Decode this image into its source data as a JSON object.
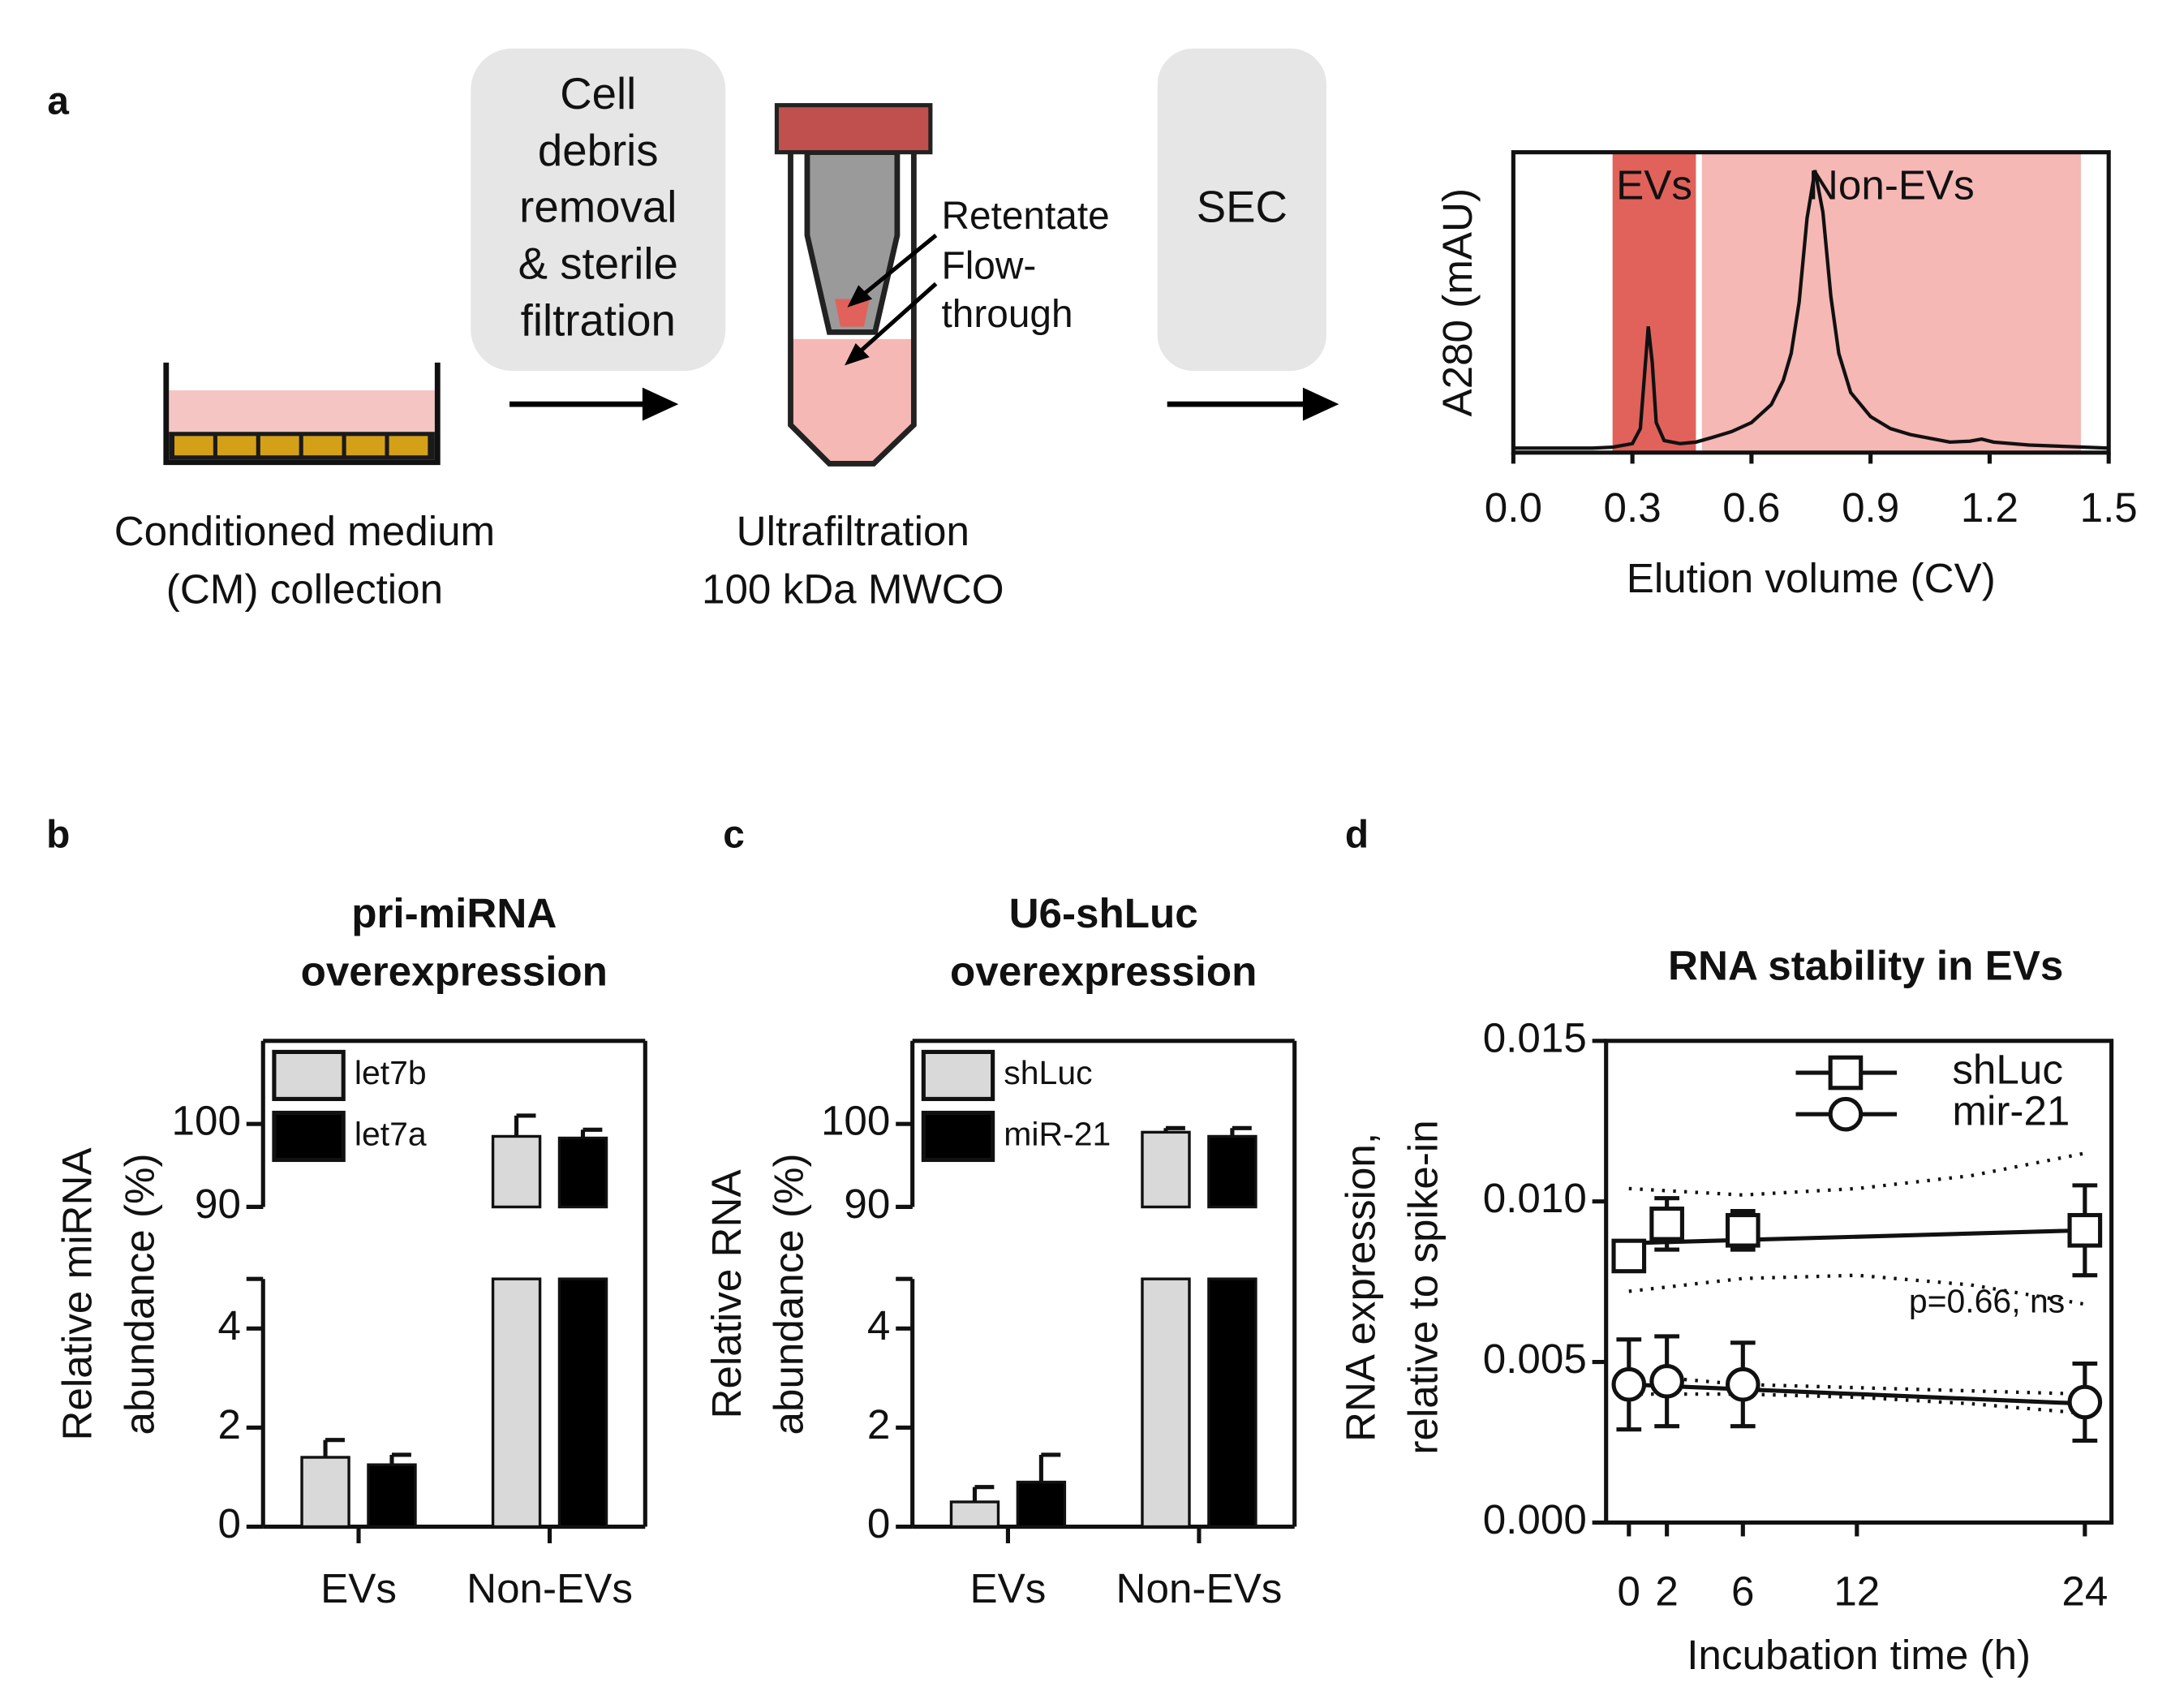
{
  "panel_labels": [
    "a",
    "b",
    "c",
    "d"
  ],
  "schematic": {
    "step1_box": [
      "Cell",
      "debris",
      "removal",
      "& sterile",
      "filtration"
    ],
    "step2_box": "SEC",
    "caption_cm": [
      "Conditioned medium",
      "(CM) collection"
    ],
    "caption_uf": [
      "Ultrafiltration",
      "100 kDa MWCO"
    ],
    "retentate": "Retentate",
    "flowthrough": [
      "Flow-",
      "through"
    ]
  },
  "chart_data": [
    {
      "type": "line",
      "x_label": "Elution volume (CV)",
      "y_label": "A280 (mAU)",
      "x": [
        0,
        0.1,
        0.2,
        0.25,
        0.3,
        0.32,
        0.33,
        0.34,
        0.35,
        0.36,
        0.38,
        0.42,
        0.46,
        0.5,
        0.55,
        0.6,
        0.65,
        0.68,
        0.7,
        0.72,
        0.74,
        0.76,
        0.78,
        0.8,
        0.82,
        0.85,
        0.9,
        0.95,
        1.0,
        1.1,
        1.15,
        1.18,
        1.21,
        1.3,
        1.4,
        1.5
      ],
      "values": [
        1.5,
        1.5,
        1.5,
        1.8,
        3,
        8,
        25,
        42,
        30,
        10,
        4,
        3,
        3.5,
        5,
        7,
        10,
        16,
        24,
        33,
        50,
        78,
        94,
        80,
        52,
        33,
        20,
        12,
        8,
        6,
        3.5,
        3.8,
        4.5,
        3.5,
        2.5,
        2,
        1.5
      ],
      "color": "#111111",
      "xlim": [
        0,
        1.5
      ],
      "xticks": [
        {
          "value": 0,
          "label": "0.0"
        },
        0.3,
        0.6,
        0.9,
        1.2,
        1.5
      ],
      "ylim": [
        0,
        100
      ],
      "regions": [
        {
          "name": "EVs",
          "range": [
            0.25,
            0.46
          ],
          "color": "#e0625b"
        },
        {
          "name": "Non-EVs",
          "range": [
            0.475,
            1.43
          ],
          "color": "#f5b8b5"
        }
      ]
    },
    {
      "type": "bar",
      "title": [
        "pri-miRNA",
        "overexpression"
      ],
      "y_label": [
        "Relative miRNA",
        "abundance (%)"
      ],
      "categories": [
        "EVs",
        "Non-EVs"
      ],
      "series": [
        {
          "name": "let7b",
          "color": "#d9d9d9",
          "values": [
            1.4,
            98.5
          ],
          "errors": [
            0.35,
            2.5
          ]
        },
        {
          "name": "let7a",
          "color": "#000000",
          "values": [
            1.25,
            98.3
          ],
          "errors": [
            0.2,
            1.0
          ]
        }
      ],
      "ylim": [
        0,
        110
      ],
      "y_break": [
        5,
        90
      ],
      "yticks": [
        0,
        2,
        4,
        90,
        100
      ]
    },
    {
      "type": "bar",
      "title": [
        "U6-shLuc",
        "overexpression"
      ],
      "y_label": [
        "Relative RNA",
        "abundance (%)"
      ],
      "categories": [
        "EVs",
        "Non-EVs"
      ],
      "series": [
        {
          "name": "shLuc",
          "color": "#d9d9d9",
          "values": [
            0.5,
            99
          ],
          "errors": [
            0.3,
            0.5
          ]
        },
        {
          "name": "miR-21",
          "color": "#000000",
          "values": [
            0.9,
            98.5
          ],
          "errors": [
            0.55,
            1.0
          ]
        }
      ],
      "ylim": [
        0,
        110
      ],
      "y_break": [
        5,
        90
      ],
      "yticks": [
        0,
        2,
        4,
        90,
        100
      ]
    },
    {
      "type": "scatter",
      "title": "RNA stability in EVs",
      "x_label": "Incubation time (h)",
      "y_label": [
        "RNA expression,",
        "relative to spike-in"
      ],
      "annotation": "p=0.66, ns",
      "x": [
        0,
        2,
        6,
        24
      ],
      "series": [
        {
          "name": "shLuc",
          "marker": "square",
          "color": "#111111",
          "values": [
            0.0083,
            0.0093,
            0.0091,
            0.0091
          ],
          "errors": [
            0.0004,
            0.0008,
            0.0006,
            0.0014
          ],
          "fit_values": [
            0.0087,
            0.0091
          ],
          "band_upper": [
            0.0104,
            0.0102,
            0.0104,
            0.0108,
            0.0115
          ],
          "band_lower": [
            0.0072,
            0.0076,
            0.0077,
            0.0074,
            0.0068
          ]
        },
        {
          "name": "mir-21",
          "marker": "circle",
          "color": "#111111",
          "values": [
            0.0043,
            0.0044,
            0.0043,
            0.00375
          ],
          "errors": [
            0.0014,
            0.0014,
            0.0013,
            0.0012
          ],
          "fit_values": [
            0.0043,
            0.0037
          ],
          "band_upper": [
            0.0046,
            0.0043,
            0.0042,
            0.0041,
            0.004
          ],
          "band_lower": [
            0.004,
            0.004,
            0.0039,
            0.0037,
            0.0034
          ]
        }
      ],
      "fit_x": [
        0,
        24
      ],
      "band_x": [
        0,
        6,
        12,
        18,
        24
      ],
      "xlim": [
        -1.2,
        25.4
      ],
      "xticks": [
        0,
        2,
        6,
        12,
        24
      ],
      "ylim": [
        0,
        0.015
      ],
      "yticks": [
        {
          "value": 0,
          "label": "0.000"
        },
        0.005,
        {
          "value": 0.01,
          "label": "0.010"
        },
        0.015
      ]
    }
  ]
}
